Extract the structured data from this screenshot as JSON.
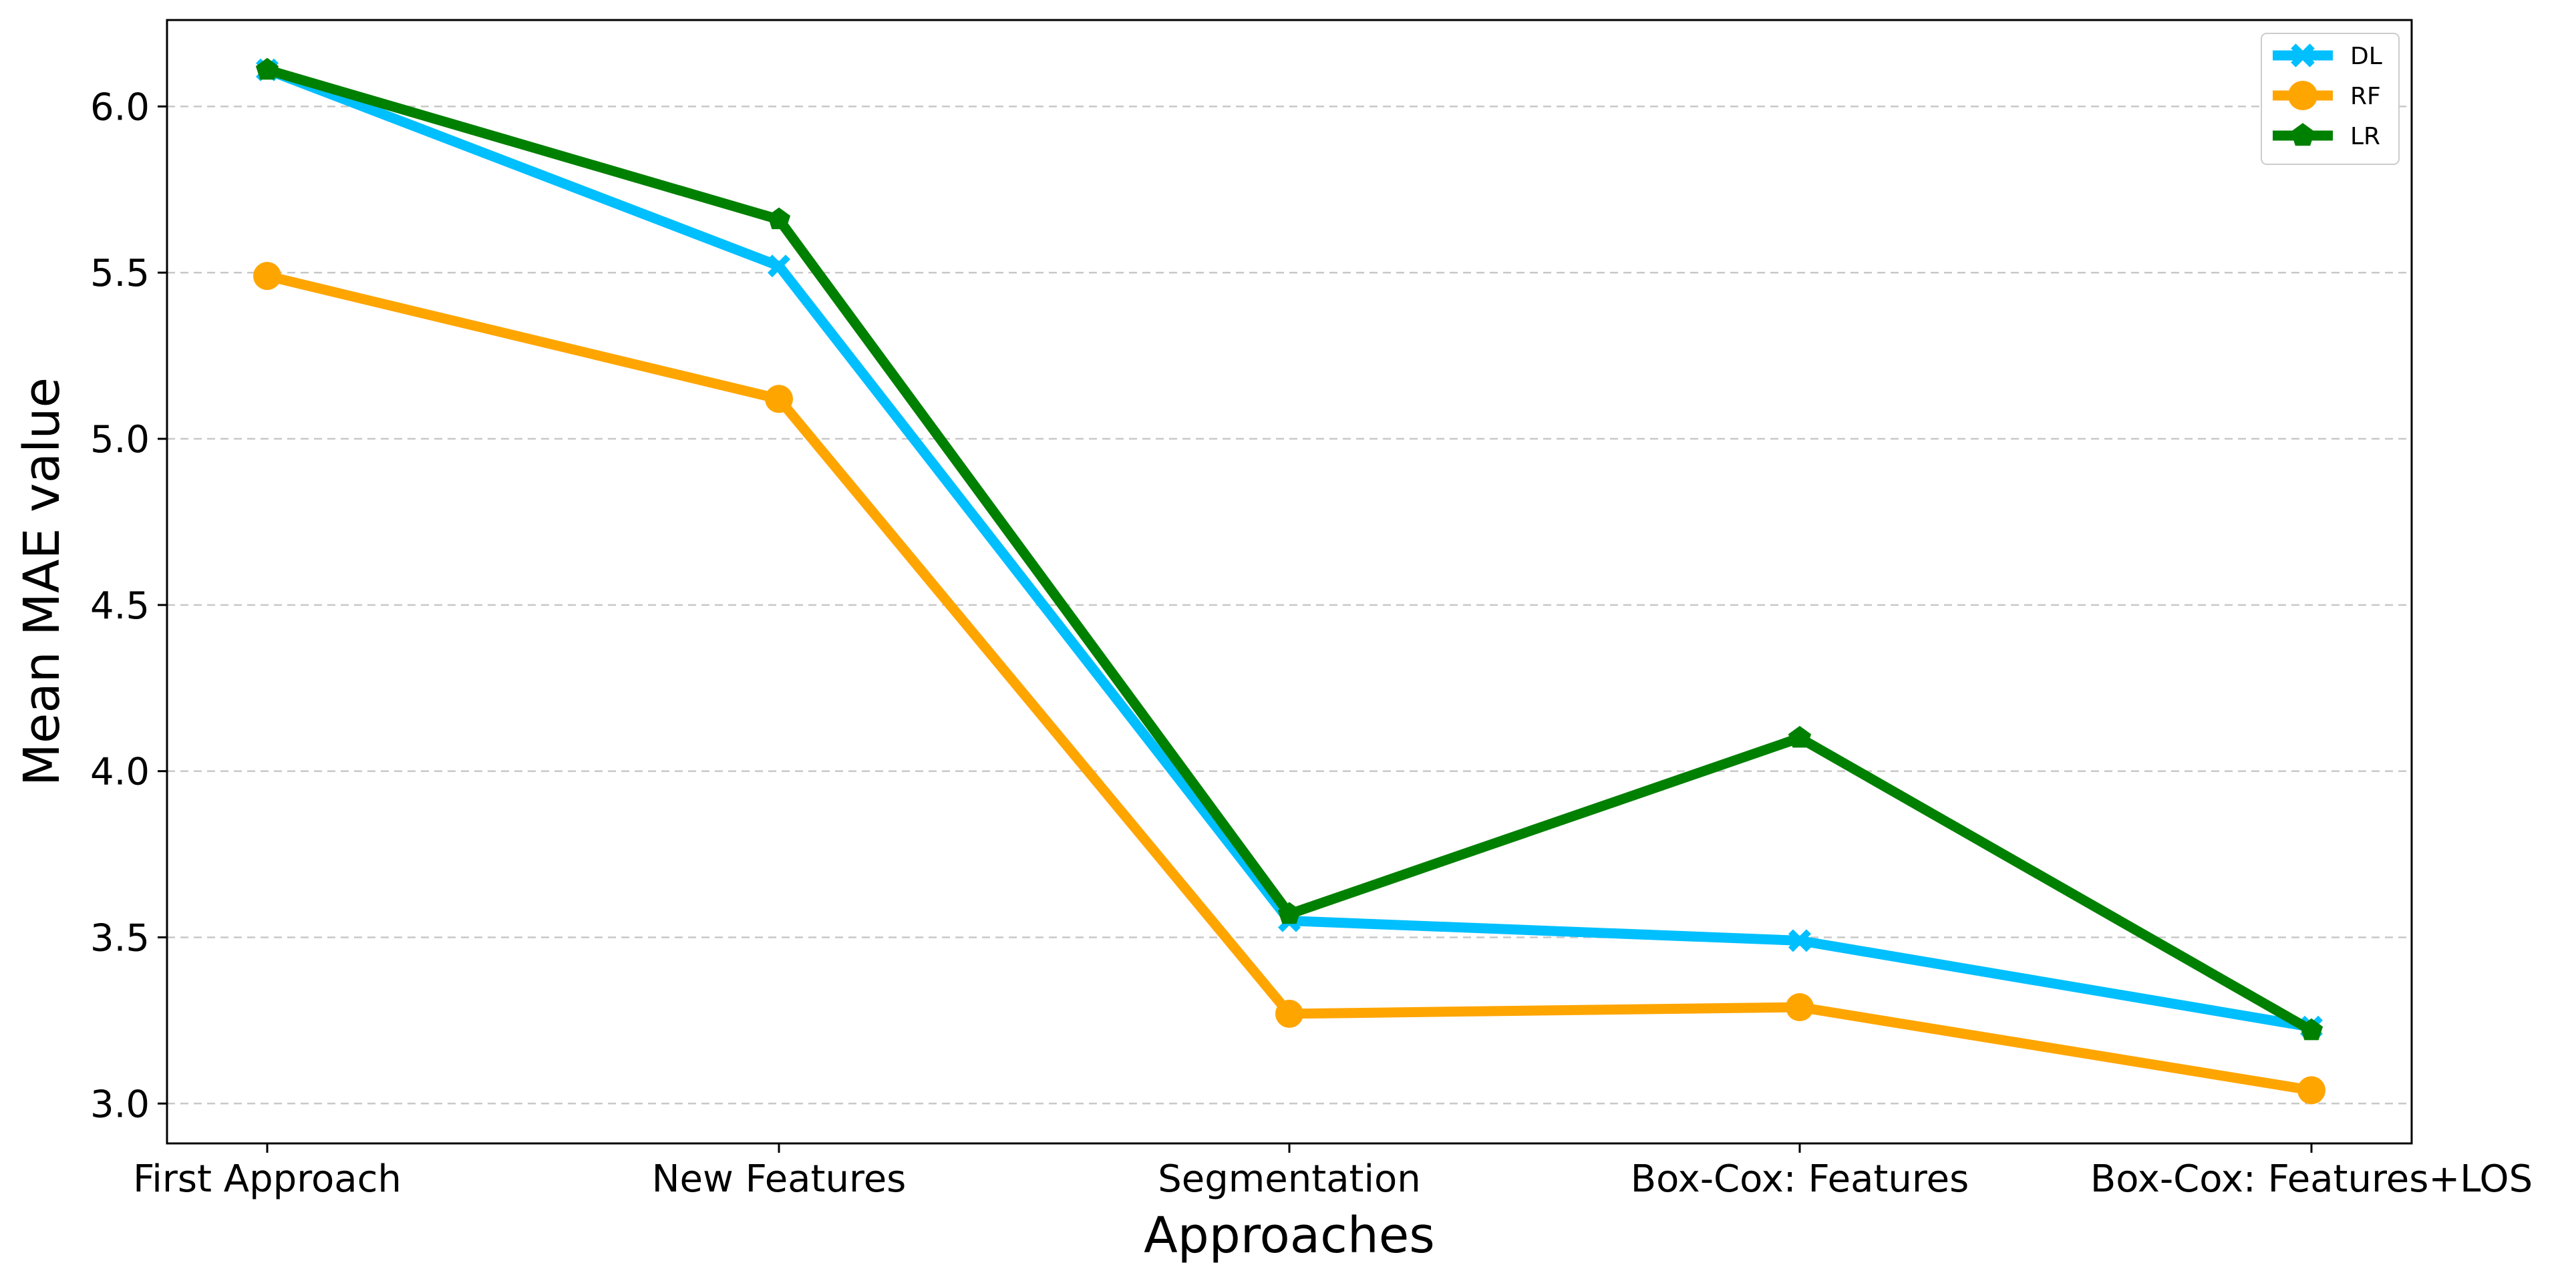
{
  "chart_data": {
    "type": "line",
    "categories": [
      "First Approach",
      "New Features",
      "Segmentation",
      "Box-Cox: Features",
      "Box-Cox: Features+LOS"
    ],
    "series": [
      {
        "name": "DL",
        "color": "#00bfff",
        "marker": "x",
        "values": [
          6.11,
          5.52,
          3.55,
          3.49,
          3.23
        ]
      },
      {
        "name": "RF",
        "color": "#ffa500",
        "marker": "circle",
        "values": [
          5.49,
          5.12,
          3.27,
          3.29,
          3.04
        ]
      },
      {
        "name": "LR",
        "color": "#008000",
        "marker": "pentagon",
        "values": [
          6.11,
          5.66,
          3.57,
          4.1,
          3.22
        ]
      }
    ],
    "xlabel": "Approaches",
    "ylabel": "Mean MAE value",
    "ylim": [
      2.88,
      6.26
    ],
    "yticks": [
      3.0,
      3.5,
      4.0,
      4.5,
      5.0,
      5.5,
      6.0
    ],
    "grid": "horizontal dashed",
    "legend": "top-right"
  }
}
